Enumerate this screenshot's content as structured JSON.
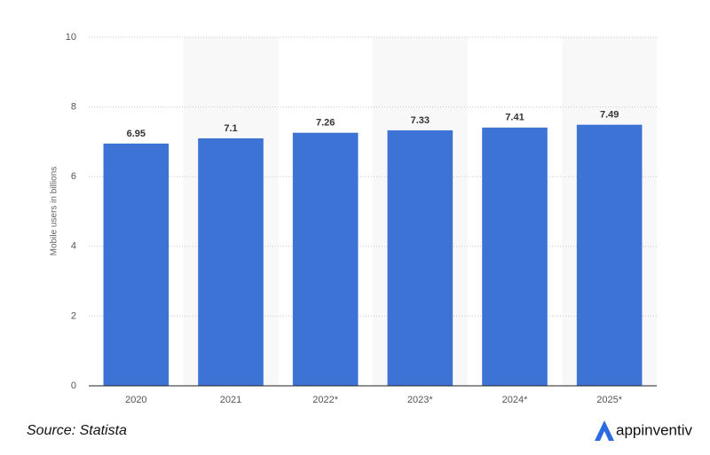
{
  "chart_data": {
    "type": "bar",
    "categories": [
      "2020",
      "2021",
      "2022*",
      "2023*",
      "2024*",
      "2025*"
    ],
    "values": [
      6.95,
      7.1,
      7.26,
      7.33,
      7.41,
      7.49
    ],
    "color": "#3e73d6",
    "y_label": "Mobile users in billions",
    "ylim": [
      0,
      10
    ],
    "yticks": [
      0,
      2,
      4,
      6,
      8,
      10
    ],
    "grid": true,
    "source": "Source: Statista",
    "brand": "appinventiv"
  }
}
